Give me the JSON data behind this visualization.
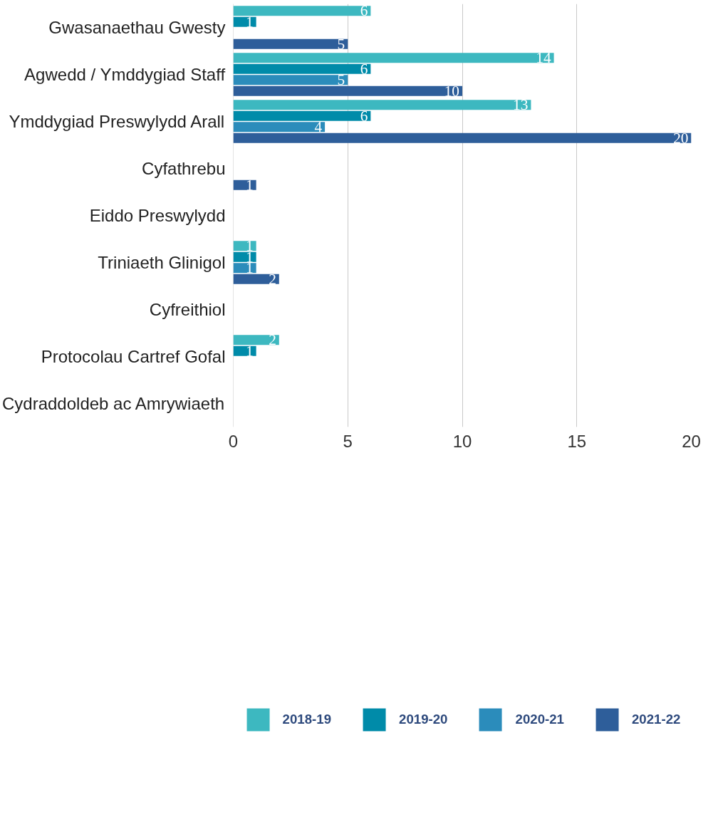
{
  "chart_data": {
    "type": "bar",
    "orientation": "horizontal",
    "categories": [
      "Gwasanaethau Gwesty",
      "Agwedd / Ymddygiad Staff",
      "Ymddygiad Preswylydd Arall",
      "Cyfathrebu",
      "Eiddo Preswylydd",
      "Triniaeth Glinigol",
      "Cyfreithiol",
      "Protocolau Cartref Gofal",
      "Cydraddoldeb ac Amrywiaeth"
    ],
    "series": [
      {
        "name": "2018-19",
        "color": "#3db8c0",
        "values": [
          6,
          14,
          13,
          null,
          null,
          1,
          null,
          2,
          null
        ]
      },
      {
        "name": "2019-20",
        "color": "#008ba9",
        "values": [
          1,
          6,
          6,
          null,
          null,
          1,
          null,
          1,
          null
        ]
      },
      {
        "name": "2020-21",
        "color": "#2b8cbb",
        "values": [
          null,
          5,
          4,
          null,
          null,
          1,
          null,
          null,
          null
        ]
      },
      {
        "name": "2021-22",
        "color": "#2e5e9a",
        "values": [
          5,
          10,
          20,
          1,
          null,
          2,
          null,
          null,
          null
        ]
      }
    ],
    "xlim": [
      0,
      20
    ],
    "xticks": [
      0,
      5,
      10,
      15,
      20
    ],
    "grid": "x",
    "legend": "bottom",
    "data_labels": true
  }
}
